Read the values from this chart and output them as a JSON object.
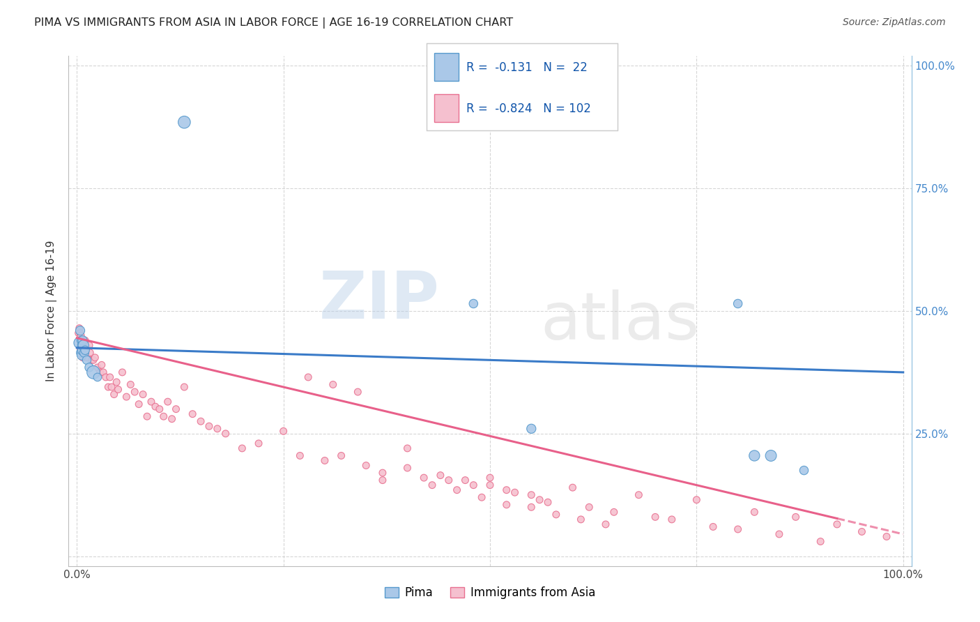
{
  "title": "PIMA VS IMMIGRANTS FROM ASIA IN LABOR FORCE | AGE 16-19 CORRELATION CHART",
  "source": "Source: ZipAtlas.com",
  "ylabel": "In Labor Force | Age 16-19",
  "xlim": [
    -0.01,
    1.01
  ],
  "ylim": [
    -0.02,
    1.02
  ],
  "pima_color": "#aac8e8",
  "asia_color": "#f5c0cf",
  "pima_edge_color": "#5599cc",
  "asia_edge_color": "#e87090",
  "pima_line_color": "#3a7bc8",
  "asia_line_color": "#e8608a",
  "legend_R_pima": "-0.131",
  "legend_N_pima": "22",
  "legend_R_asia": "-0.824",
  "legend_N_asia": "102",
  "pima_trend_y_start": 0.425,
  "pima_trend_y_end": 0.375,
  "asia_trend_y_start": 0.445,
  "asia_trend_y_end": 0.045,
  "asia_trend_solid_end_x": 0.92,
  "background_color": "#ffffff",
  "grid_color": "#cccccc",
  "watermark_top": "ZIP",
  "watermark_bottom": "atlas",
  "pima_x": [
    0.003,
    0.004,
    0.005,
    0.005,
    0.006,
    0.006,
    0.007,
    0.007,
    0.008,
    0.009,
    0.01,
    0.012,
    0.015,
    0.02,
    0.025,
    0.13,
    0.48,
    0.55,
    0.8,
    0.82,
    0.84,
    0.88
  ],
  "pima_y": [
    0.435,
    0.46,
    0.44,
    0.415,
    0.43,
    0.41,
    0.44,
    0.42,
    0.43,
    0.415,
    0.42,
    0.4,
    0.385,
    0.375,
    0.365,
    0.885,
    0.515,
    0.26,
    0.515,
    0.205,
    0.205,
    0.175
  ],
  "pima_s": [
    130,
    90,
    70,
    90,
    80,
    100,
    90,
    110,
    120,
    90,
    80,
    80,
    80,
    180,
    70,
    160,
    80,
    90,
    80,
    120,
    130,
    80
  ],
  "asia_x": [
    0.002,
    0.003,
    0.004,
    0.004,
    0.005,
    0.005,
    0.006,
    0.006,
    0.007,
    0.007,
    0.008,
    0.009,
    0.01,
    0.01,
    0.012,
    0.013,
    0.015,
    0.016,
    0.018,
    0.02,
    0.022,
    0.025,
    0.028,
    0.03,
    0.032,
    0.035,
    0.038,
    0.04,
    0.042,
    0.045,
    0.048,
    0.05,
    0.055,
    0.06,
    0.065,
    0.07,
    0.075,
    0.08,
    0.085,
    0.09,
    0.095,
    0.1,
    0.105,
    0.11,
    0.115,
    0.12,
    0.13,
    0.14,
    0.15,
    0.16,
    0.17,
    0.18,
    0.2,
    0.22,
    0.25,
    0.27,
    0.3,
    0.32,
    0.35,
    0.37,
    0.4,
    0.42,
    0.45,
    0.48,
    0.5,
    0.52,
    0.55,
    0.57,
    0.6,
    0.62,
    0.65,
    0.68,
    0.7,
    0.72,
    0.75,
    0.77,
    0.8,
    0.82,
    0.85,
    0.87,
    0.9,
    0.92,
    0.95,
    0.98,
    0.4,
    0.44,
    0.47,
    0.5,
    0.53,
    0.56,
    0.28,
    0.31,
    0.34,
    0.37,
    0.43,
    0.46,
    0.49,
    0.52,
    0.55,
    0.58,
    0.61,
    0.64
  ],
  "asia_y": [
    0.455,
    0.465,
    0.455,
    0.425,
    0.45,
    0.42,
    0.44,
    0.415,
    0.435,
    0.405,
    0.44,
    0.43,
    0.44,
    0.415,
    0.425,
    0.405,
    0.43,
    0.415,
    0.4,
    0.4,
    0.405,
    0.385,
    0.375,
    0.39,
    0.375,
    0.365,
    0.345,
    0.365,
    0.345,
    0.33,
    0.355,
    0.34,
    0.375,
    0.325,
    0.35,
    0.335,
    0.31,
    0.33,
    0.285,
    0.315,
    0.305,
    0.3,
    0.285,
    0.315,
    0.28,
    0.3,
    0.345,
    0.29,
    0.275,
    0.265,
    0.26,
    0.25,
    0.22,
    0.23,
    0.255,
    0.205,
    0.195,
    0.205,
    0.185,
    0.17,
    0.22,
    0.16,
    0.155,
    0.145,
    0.16,
    0.135,
    0.125,
    0.11,
    0.14,
    0.1,
    0.09,
    0.125,
    0.08,
    0.075,
    0.115,
    0.06,
    0.055,
    0.09,
    0.045,
    0.08,
    0.03,
    0.065,
    0.05,
    0.04,
    0.18,
    0.165,
    0.155,
    0.145,
    0.13,
    0.115,
    0.365,
    0.35,
    0.335,
    0.155,
    0.145,
    0.135,
    0.12,
    0.105,
    0.1,
    0.085,
    0.075,
    0.065
  ],
  "asia_s": [
    50,
    50,
    50,
    50,
    50,
    50,
    50,
    50,
    50,
    50,
    50,
    50,
    50,
    50,
    50,
    50,
    50,
    50,
    50,
    50,
    50,
    50,
    50,
    50,
    50,
    50,
    50,
    50,
    50,
    50,
    50,
    50,
    50,
    50,
    50,
    50,
    50,
    50,
    50,
    50,
    50,
    50,
    50,
    50,
    50,
    50,
    50,
    50,
    50,
    50,
    50,
    50,
    50,
    50,
    50,
    50,
    50,
    50,
    50,
    50,
    50,
    50,
    50,
    50,
    50,
    50,
    50,
    50,
    50,
    50,
    50,
    50,
    50,
    50,
    50,
    50,
    50,
    50,
    50,
    50,
    50,
    50,
    50,
    50,
    50,
    50,
    50,
    50,
    50,
    50,
    50,
    50,
    50,
    50,
    50,
    50,
    50,
    50,
    50,
    50,
    50,
    50
  ]
}
